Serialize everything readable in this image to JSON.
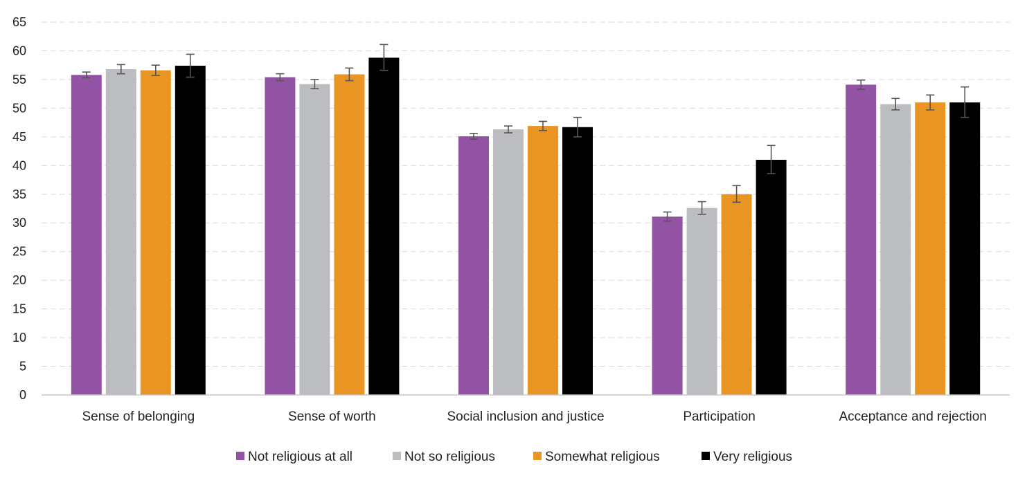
{
  "chart_data": {
    "type": "bar",
    "title": "",
    "xlabel": "",
    "ylabel": "",
    "ylim": [
      0,
      65
    ],
    "yticks": [
      0,
      5,
      10,
      15,
      20,
      25,
      30,
      35,
      40,
      45,
      50,
      55,
      60,
      65
    ],
    "grid": "horizontal-dashed",
    "legend_position": "bottom",
    "categories": [
      "Sense of belonging",
      "Sense of worth",
      "Social inclusion and justice",
      "Participation",
      "Acceptance and rejection"
    ],
    "series": [
      {
        "name": "Not religious at all",
        "color": "#9353a5",
        "values": [
          55.8,
          55.4,
          45.1,
          31.1,
          54.1
        ],
        "error_low": [
          55.3,
          54.8,
          44.6,
          30.3,
          53.3
        ],
        "error_high": [
          56.3,
          56.0,
          45.6,
          31.9,
          54.9
        ]
      },
      {
        "name": "Not so religious",
        "color": "#bcbdc0",
        "values": [
          56.8,
          54.2,
          46.3,
          32.6,
          50.7
        ],
        "error_low": [
          56.0,
          53.4,
          45.7,
          31.5,
          49.7
        ],
        "error_high": [
          57.6,
          55.0,
          46.9,
          33.7,
          51.7
        ]
      },
      {
        "name": "Somewhat religious",
        "color": "#e99524",
        "values": [
          56.6,
          55.9,
          46.9,
          35.0,
          51.0
        ],
        "error_low": [
          55.7,
          54.8,
          46.1,
          33.6,
          49.7
        ],
        "error_high": [
          57.5,
          57.0,
          47.7,
          36.5,
          52.3
        ]
      },
      {
        "name": "Very religious",
        "color": "#000000",
        "values": [
          57.4,
          58.8,
          46.7,
          41.0,
          51.0
        ],
        "error_low": [
          55.4,
          56.6,
          45.0,
          38.6,
          48.4
        ],
        "error_high": [
          59.4,
          61.1,
          48.4,
          43.5,
          53.7
        ]
      }
    ]
  }
}
